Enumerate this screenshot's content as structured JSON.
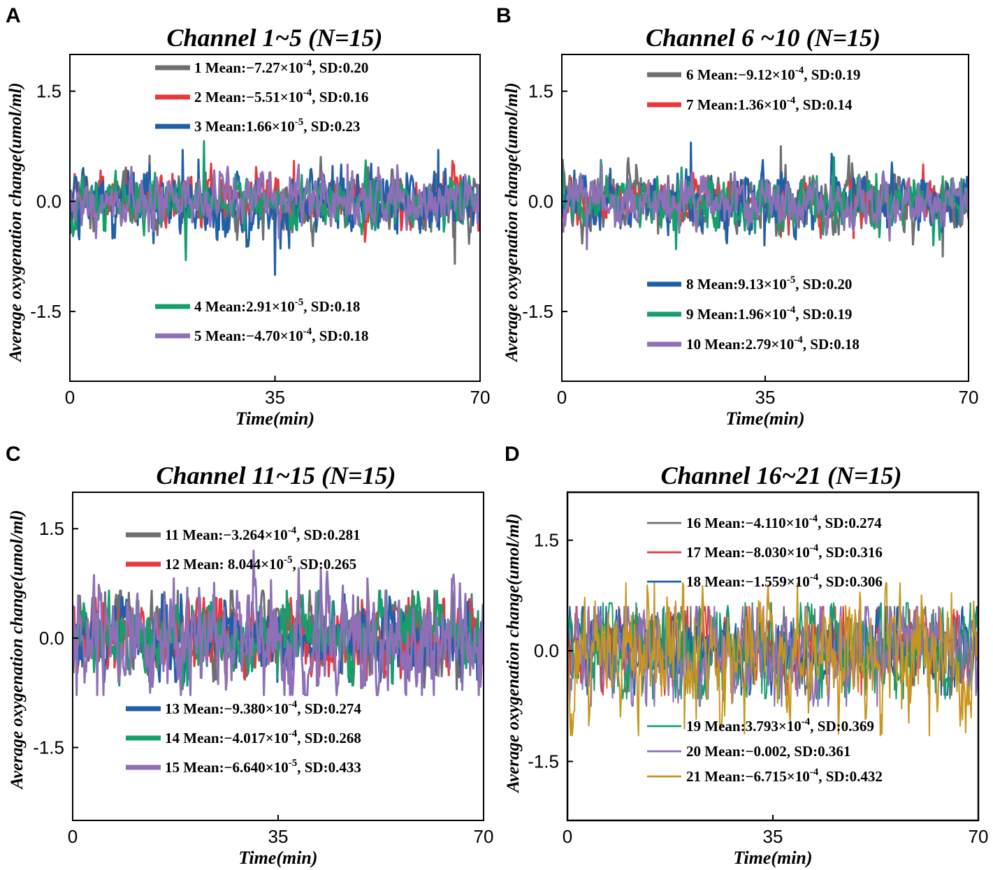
{
  "chart_data": [
    {
      "type": "line",
      "panel_label": "A",
      "title": "Channel 1~5 (N=15)",
      "xlabel": "Time(min)",
      "ylabel": "Average oxygenation change(umol/ml)",
      "xlim": [
        0,
        70
      ],
      "ylim": [
        -2.45,
        2.0
      ],
      "xticks": [
        "0",
        "35",
        "70"
      ],
      "yticks": [
        "1.5",
        "0.0",
        "-1.5"
      ],
      "legend_groups": [
        "top",
        "bottom"
      ],
      "series": [
        {
          "name": "1",
          "color": "#6d6e71",
          "mean_label": "Mean:−",
          "mean_base": "7.27×10",
          "mean_exp": "-4",
          "sep": ",",
          "sd_label": "SD:0.20",
          "sd": 0.2,
          "min": -0.85,
          "max": 0.62,
          "legend_group": "top"
        },
        {
          "name": "2",
          "color": "#e8383d",
          "mean_label": "Mean:−",
          "mean_base": "5.51×10",
          "mean_exp": "-4",
          "sep": ",",
          "sd_label": "SD:0.16",
          "sd": 0.16,
          "min": -0.55,
          "max": 0.55,
          "legend_group": "top"
        },
        {
          "name": "3",
          "color": "#1f5fa8",
          "mean_label": "Mean:",
          "mean_base": "1.66×10",
          "mean_exp": "-5",
          "sep": ",",
          "sd_label": "SD:0.23",
          "sd": 0.23,
          "min": -1.0,
          "max": 0.7,
          "legend_group": "top"
        },
        {
          "name": "4",
          "color": "#14a06a",
          "mean_label": "Mean:",
          "mean_base": "2.91×10",
          "mean_exp": "-5",
          "sep": ",",
          "sd_label": "SD:0.18",
          "sd": 0.18,
          "min": -0.8,
          "max": 0.82,
          "legend_group": "bottom"
        },
        {
          "name": "5",
          "color": "#8e6fb8",
          "mean_label": "Mean:−",
          "mean_base": "4.70×10",
          "mean_exp": "-4",
          "sep": ",",
          "sd_label": "SD:0.18",
          "sd": 0.18,
          "min": -0.5,
          "max": 0.5,
          "legend_group": "bottom"
        }
      ]
    },
    {
      "type": "line",
      "panel_label": "B",
      "title": "Channel 6 ~10 (N=15)",
      "xlabel": "Time(min)",
      "ylabel": "Average oxygenation change(umol/ml)",
      "xlim": [
        0,
        70
      ],
      "ylim": [
        -2.45,
        2.0
      ],
      "xticks": [
        "0",
        "35",
        "70"
      ],
      "yticks": [
        "1.5",
        "0.0",
        "-1.5"
      ],
      "legend_groups": [
        "top",
        "bottom"
      ],
      "series": [
        {
          "name": "6",
          "color": "#6d6e71",
          "mean_label": "Mean:−",
          "mean_base": "9.12×10",
          "mean_exp": "-4",
          "sep": ",",
          "sd_label": "SD:0.19",
          "sd": 0.19,
          "min": -0.75,
          "max": 0.75,
          "legend_group": "top"
        },
        {
          "name": "7",
          "color": "#e8383d",
          "mean_label": "Mean:",
          "mean_base": "1.36×10",
          "mean_exp": "-4",
          "sep": ",",
          "sd_label": "SD:0.14",
          "sd": 0.14,
          "min": -0.5,
          "max": 0.5,
          "legend_group": "top"
        },
        {
          "name": "8",
          "color": "#1f5fa8",
          "mean_label": "Mean:",
          "mean_base": "9.13×10",
          "mean_exp": "-5",
          "sep": ",",
          "sd_label": "SD:0.20",
          "sd": 0.2,
          "min": -0.6,
          "max": 0.8,
          "legend_group": "bottom"
        },
        {
          "name": "9",
          "color": "#14a06a",
          "mean_label": "Mean:",
          "mean_base": "1.96×10",
          "mean_exp": "-4",
          "sep": ",",
          "sd_label": "SD:0.19",
          "sd": 0.19,
          "min": -0.65,
          "max": 0.6,
          "legend_group": "bottom"
        },
        {
          "name": "10",
          "color": "#8e6fb8",
          "mean_label": "Mean:",
          "mean_base": "2.79×10",
          "mean_exp": "-4",
          "sep": ",",
          "sd_label": "SD:0.18",
          "sd": 0.18,
          "min": -0.65,
          "max": 0.5,
          "legend_group": "bottom"
        }
      ]
    },
    {
      "type": "line",
      "panel_label": "C",
      "title": "Channel 11~15 (N=15)",
      "xlabel": "Time(min)",
      "ylabel": "Average oxygenation change(umol/ml)",
      "xlim": [
        0,
        70
      ],
      "ylim": [
        -2.5,
        2.0
      ],
      "xticks": [
        "0",
        "35",
        "70"
      ],
      "yticks": [
        "1.5",
        "0.0",
        "-1.5"
      ],
      "legend_groups": [
        "top",
        "bottom"
      ],
      "series": [
        {
          "name": "11",
          "color": "#6d6e71",
          "mean_label": "Mean:−",
          "mean_base": "3.264×10",
          "mean_exp": "-4",
          "sep": ",",
          "sd_label": "SD:0.281",
          "sd": 0.281,
          "min": -0.7,
          "max": 0.65,
          "legend_group": "top"
        },
        {
          "name": "12",
          "color": "#e8383d",
          "mean_label": "Mean: ",
          "mean_base": "8.044×10",
          "mean_exp": "-5",
          "sep": ",",
          "sd_label": "SD:0.265",
          "sd": 0.265,
          "min": -0.55,
          "max": 0.55,
          "legend_group": "top"
        },
        {
          "name": "13",
          "color": "#1f5fa8",
          "mean_label": "Mean:−",
          "mean_base": "9.380×10",
          "mean_exp": "-4",
          "sep": ",",
          "sd_label": "SD:0.274",
          "sd": 0.274,
          "min": -0.6,
          "max": 0.6,
          "legend_group": "bottom"
        },
        {
          "name": "14",
          "color": "#14a06a",
          "mean_label": "Mean:−",
          "mean_base": "4.017×10",
          "mean_exp": "-4",
          "sep": ",",
          "sd_label": "SD:0.268",
          "sd": 0.268,
          "min": -0.65,
          "max": 0.65,
          "legend_group": "bottom"
        },
        {
          "name": "15",
          "color": "#8e6fb8",
          "mean_label": "Mean:−",
          "mean_base": "6.640×10",
          "mean_exp": "-5",
          "sep": ",",
          "sd_label": "SD:0.433",
          "sd": 0.433,
          "min": -0.78,
          "max": 1.2,
          "legend_group": "bottom"
        }
      ]
    },
    {
      "type": "line",
      "panel_label": "D",
      "title": "Channel 16~21 (N=15)",
      "xlabel": "Time(min)",
      "ylabel": "Average oxygenation change(umol/ml)",
      "xlim": [
        0,
        70
      ],
      "ylim": [
        -2.3,
        2.15
      ],
      "xticks": [
        "0",
        "35",
        "70"
      ],
      "yticks": [
        "1.5",
        "0.0",
        "-1.5"
      ],
      "legend_groups": [
        "top",
        "bottom"
      ],
      "series": [
        {
          "name": "16",
          "color": "#6d6e71",
          "mean_label": "Mean:−",
          "mean_base": "4.110×10",
          "mean_exp": "-4",
          "sep": ",",
          "sd_label": "SD:0.274",
          "sd": 0.274,
          "min": -0.6,
          "max": 0.6,
          "legend_group": "top"
        },
        {
          "name": "17",
          "color": "#e8383d",
          "mean_label": "Mean:−",
          "mean_base": "8.030×10",
          "mean_exp": "-4",
          "sep": ",",
          "sd_label": "SD:0.316",
          "sd": 0.316,
          "min": -0.6,
          "max": 0.6,
          "legend_group": "top"
        },
        {
          "name": "18",
          "color": "#1f5fa8",
          "mean_label": "Mean:−",
          "mean_base": "1.559×10",
          "mean_exp": "-4",
          "sep": ",",
          "sd_label": "SD:0.306",
          "sd": 0.306,
          "min": -0.6,
          "max": 0.6,
          "legend_group": "top"
        },
        {
          "name": "19",
          "color": "#14a06a",
          "mean_label": "Mean:",
          "mean_base": "3.793×10",
          "mean_exp": "-4",
          "sep": ",",
          "sd_label": "SD:0.369",
          "sd": 0.369,
          "min": -0.65,
          "max": 0.65,
          "legend_group": "bottom"
        },
        {
          "name": "20",
          "color": "#8e6fb8",
          "mean_label": "Mean:−",
          "mean_base": "0.002",
          "mean_exp": "",
          "sep": ",",
          "sd_label": "SD:0.361",
          "sd": 0.361,
          "min": -0.75,
          "max": 0.6,
          "legend_group": "bottom"
        },
        {
          "name": "21",
          "color": "#c8961e",
          "mean_label": "Mean:−",
          "mean_base": "6.715×10",
          "mean_exp": "-4",
          "sep": ",",
          "sd_label": "SD:0.432",
          "sd": 0.432,
          "min": -1.15,
          "max": 0.92,
          "legend_group": "bottom"
        }
      ]
    }
  ]
}
